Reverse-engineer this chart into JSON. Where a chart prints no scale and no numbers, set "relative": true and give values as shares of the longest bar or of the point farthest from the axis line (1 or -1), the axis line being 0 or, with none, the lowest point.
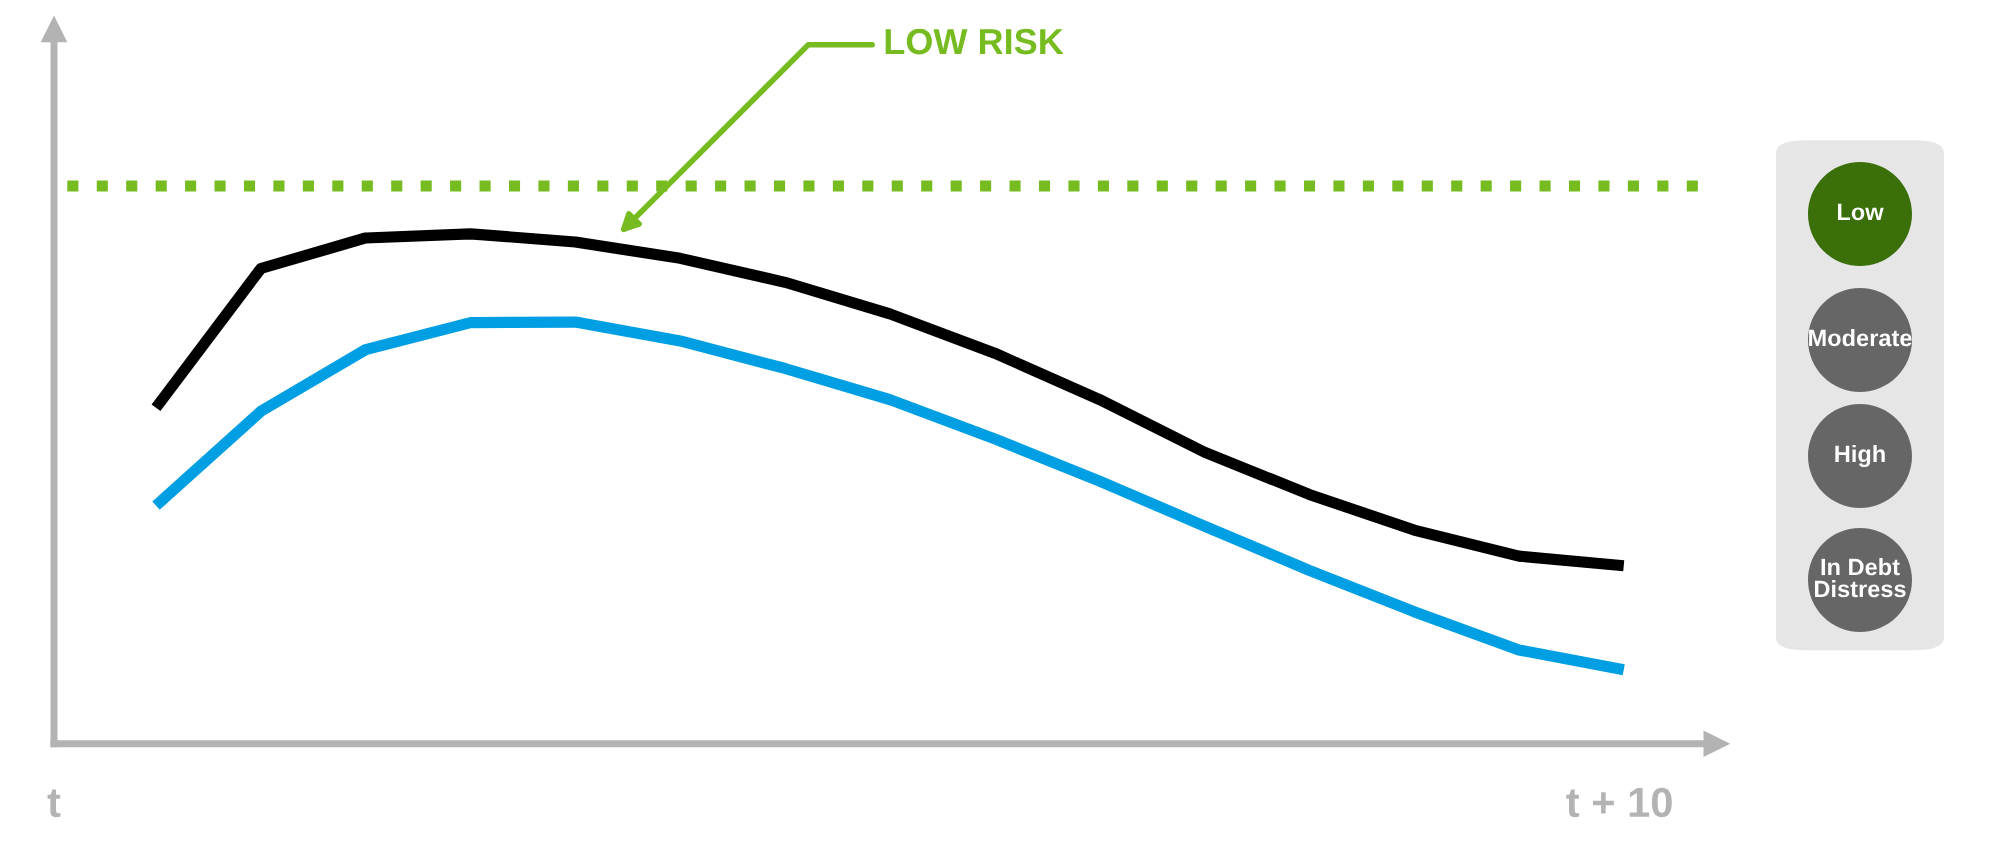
{
  "chart_data": {
    "type": "line",
    "relative": true,
    "categories": [
      null,
      null,
      null,
      null,
      null,
      null,
      null,
      null,
      null,
      null,
      null,
      null,
      null,
      null,
      null
    ],
    "series": [
      {
        "color": "#000000",
        "values": [
          0.659,
          0.932,
          0.992,
          1.0,
          0.984,
          0.952,
          0.905,
          0.843,
          0.766,
          0.675,
          0.572,
          0.489,
          0.419,
          0.368,
          0.349
        ]
      },
      {
        "color": "#009fe3",
        "values": [
          0.467,
          0.652,
          0.773,
          0.826,
          0.827,
          0.79,
          0.736,
          0.675,
          0.598,
          0.515,
          0.427,
          0.34,
          0.259,
          0.184,
          0.145
        ]
      }
    ],
    "ref_lines": [
      {
        "axis": "y",
        "value": 1.094,
        "label": "LOW RISK",
        "color": "#76bc21",
        "line_style": "dotted"
      }
    ],
    "annotations": [
      "t",
      "t + 10",
      "Low",
      "Moderate",
      "High",
      "In Debt\nDistress"
    ],
    "grid": false,
    "legend": false,
    "marker": "none",
    "line_style": "solid"
  }
}
